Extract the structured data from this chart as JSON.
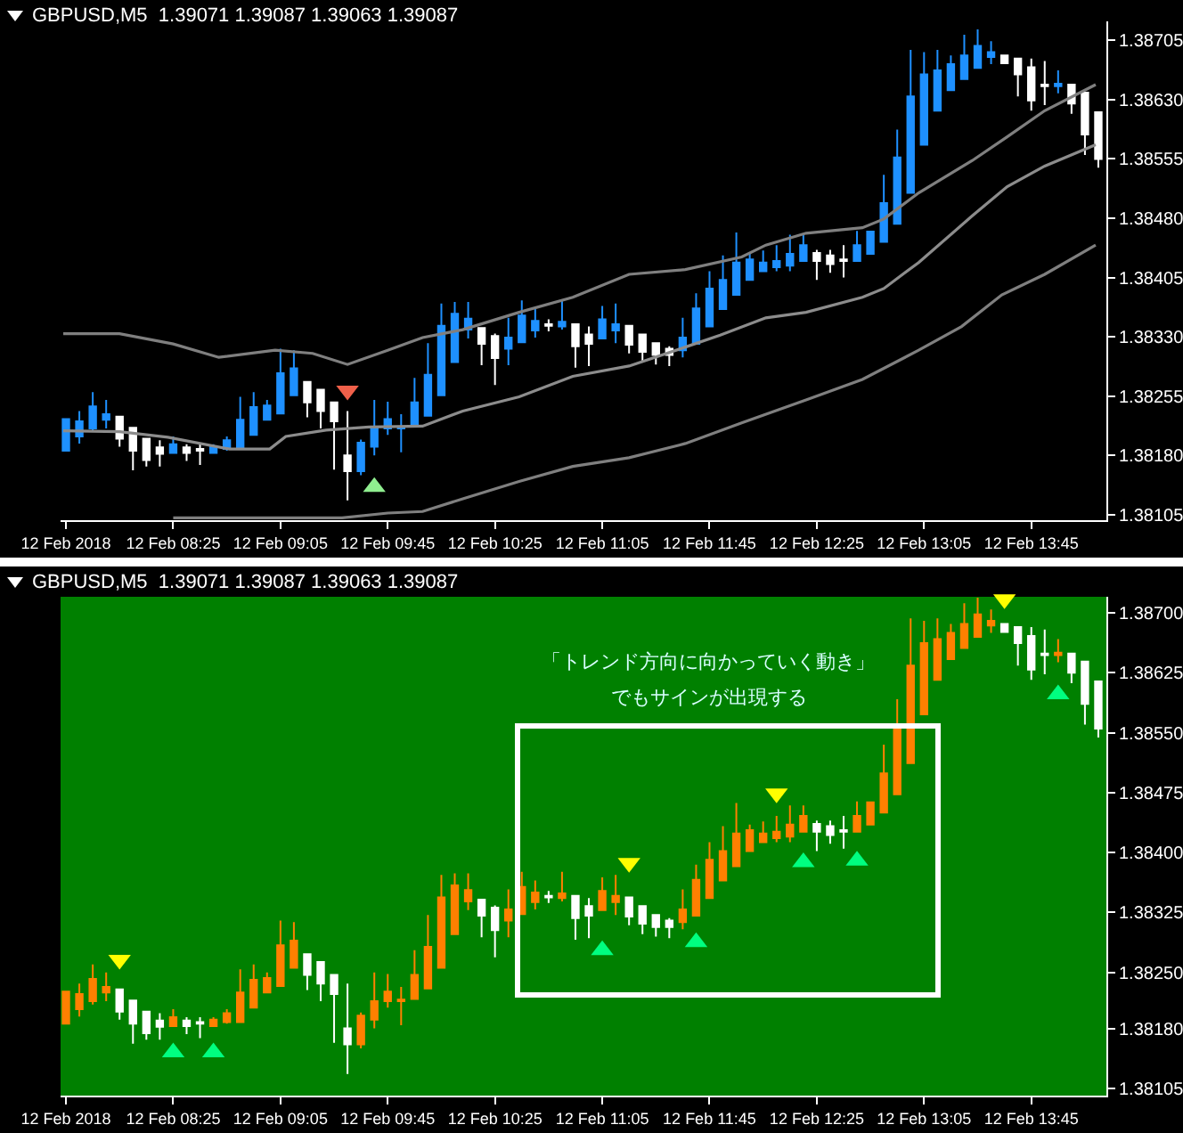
{
  "chart_data": [
    {
      "type": "candlestick",
      "title": "GBPUSD,M5  1.39071 1.39087 1.39063 1.39087",
      "x": [
        "2018-02-12T07:45",
        "2018-02-12T07:50",
        "2018-02-12T07:55",
        "2018-02-12T08:00",
        "2018-02-12T08:05",
        "2018-02-12T08:10",
        "2018-02-12T08:15",
        "2018-02-12T08:20",
        "2018-02-12T08:25",
        "2018-02-12T08:30",
        "2018-02-12T08:35",
        "2018-02-12T08:40",
        "2018-02-12T08:45",
        "2018-02-12T08:50",
        "2018-02-12T08:55",
        "2018-02-12T09:00",
        "2018-02-12T09:05",
        "2018-02-12T09:10",
        "2018-02-12T09:15",
        "2018-02-12T09:20",
        "2018-02-12T09:25",
        "2018-02-12T09:30",
        "2018-02-12T09:35",
        "2018-02-12T09:40",
        "2018-02-12T09:45",
        "2018-02-12T09:50",
        "2018-02-12T09:55",
        "2018-02-12T10:00",
        "2018-02-12T10:05",
        "2018-02-12T10:10",
        "2018-02-12T10:15",
        "2018-02-12T10:20",
        "2018-02-12T10:25",
        "2018-02-12T10:30",
        "2018-02-12T10:35",
        "2018-02-12T10:40",
        "2018-02-12T10:45",
        "2018-02-12T10:50",
        "2018-02-12T10:55",
        "2018-02-12T11:00",
        "2018-02-12T11:05",
        "2018-02-12T11:10",
        "2018-02-12T11:15",
        "2018-02-12T11:20",
        "2018-02-12T11:25",
        "2018-02-12T11:30",
        "2018-02-12T11:35",
        "2018-02-12T11:40",
        "2018-02-12T11:45",
        "2018-02-12T11:50",
        "2018-02-12T11:55",
        "2018-02-12T12:00",
        "2018-02-12T12:05",
        "2018-02-12T12:10",
        "2018-02-12T12:15",
        "2018-02-12T12:20",
        "2018-02-12T12:25",
        "2018-02-12T12:30",
        "2018-02-12T12:35",
        "2018-02-12T12:40",
        "2018-02-12T12:45",
        "2018-02-12T12:50",
        "2018-02-12T12:55",
        "2018-02-12T13:00",
        "2018-02-12T13:05",
        "2018-02-12T13:10",
        "2018-02-12T13:15",
        "2018-02-12T13:20",
        "2018-02-12T13:25",
        "2018-02-12T13:30",
        "2018-02-12T13:35",
        "2018-02-12T13:40",
        "2018-02-12T13:45",
        "2018-02-12T13:50",
        "2018-02-12T13:55",
        "2018-02-12T14:00",
        "2018-02-12T14:05",
        "2018-02-12T14:10"
      ],
      "ohlc": [
        [
          1.38186,
          1.38226,
          1.38186,
          1.38226
        ],
        [
          1.38204,
          1.38236,
          1.38195,
          1.38223
        ],
        [
          1.38214,
          1.3826,
          1.3821,
          1.38242
        ],
        [
          1.38225,
          1.3825,
          1.38214,
          1.38232
        ],
        [
          1.38229,
          1.38229,
          1.38191,
          1.38201
        ],
        [
          1.38215,
          1.38215,
          1.38161,
          1.38186
        ],
        [
          1.38201,
          1.38201,
          1.38166,
          1.38174
        ],
        [
          1.3819,
          1.38199,
          1.38166,
          1.38182
        ],
        [
          1.38183,
          1.38204,
          1.38183,
          1.38194
        ],
        [
          1.3819,
          1.38194,
          1.38173,
          1.38183
        ],
        [
          1.38188,
          1.38194,
          1.38168,
          1.38186
        ],
        [
          1.38183,
          1.38194,
          1.38182,
          1.38191
        ],
        [
          1.38188,
          1.38204,
          1.38186,
          1.38199
        ],
        [
          1.38188,
          1.38254,
          1.38188,
          1.38225
        ],
        [
          1.38206,
          1.3826,
          1.38206,
          1.38241
        ],
        [
          1.38225,
          1.3825,
          1.38225,
          1.38243
        ],
        [
          1.38233,
          1.38315,
          1.38233,
          1.38284
        ],
        [
          1.38256,
          1.38313,
          1.38256,
          1.3829
        ],
        [
          1.38273,
          1.38273,
          1.38228,
          1.38247
        ],
        [
          1.38263,
          1.38263,
          1.38214,
          1.38236
        ],
        [
          1.38247,
          1.38247,
          1.38162,
          1.38223
        ],
        [
          1.3818,
          1.38236,
          1.38123,
          1.3816
        ],
        [
          1.3816,
          1.382,
          1.38155,
          1.38196
        ],
        [
          1.38191,
          1.3825,
          1.3818,
          1.38214
        ],
        [
          1.38214,
          1.38248,
          1.38206,
          1.38226
        ],
        [
          1.38214,
          1.38232,
          1.38184,
          1.38216
        ],
        [
          1.38217,
          1.38278,
          1.38217,
          1.38247
        ],
        [
          1.3823,
          1.38322,
          1.3823,
          1.38282
        ],
        [
          1.38256,
          1.38372,
          1.38256,
          1.38344
        ],
        [
          1.38298,
          1.38374,
          1.38298,
          1.38359
        ],
        [
          1.38339,
          1.38374,
          1.38328,
          1.38353
        ],
        [
          1.38341,
          1.38341,
          1.38294,
          1.38321
        ],
        [
          1.38331,
          1.38334,
          1.38269,
          1.38303
        ],
        [
          1.38315,
          1.38354,
          1.38294,
          1.38329
        ],
        [
          1.38323,
          1.38376,
          1.38323,
          1.38357
        ],
        [
          1.38338,
          1.38365,
          1.38329,
          1.3835
        ],
        [
          1.38346,
          1.38352,
          1.38337,
          1.38344
        ],
        [
          1.38343,
          1.38376,
          1.38339,
          1.38349
        ],
        [
          1.38346,
          1.38346,
          1.38291,
          1.38318
        ],
        [
          1.38333,
          1.38343,
          1.38293,
          1.38321
        ],
        [
          1.38328,
          1.38369,
          1.38328,
          1.38352
        ],
        [
          1.38338,
          1.38372,
          1.38322,
          1.38346
        ],
        [
          1.38344,
          1.38344,
          1.38309,
          1.3832
        ],
        [
          1.38333,
          1.38333,
          1.38298,
          1.38311
        ],
        [
          1.38322,
          1.38322,
          1.38295,
          1.38307
        ],
        [
          1.38315,
          1.38318,
          1.38293,
          1.38307
        ],
        [
          1.38313,
          1.38354,
          1.38304,
          1.38329
        ],
        [
          1.38321,
          1.38385,
          1.38321,
          1.38366
        ],
        [
          1.38343,
          1.38413,
          1.38343,
          1.38391
        ],
        [
          1.38365,
          1.38433,
          1.38365,
          1.38402
        ],
        [
          1.38383,
          1.38462,
          1.38383,
          1.38424
        ],
        [
          1.38402,
          1.38435,
          1.38402,
          1.38428
        ],
        [
          1.38413,
          1.38439,
          1.38413,
          1.38424
        ],
        [
          1.38418,
          1.38446,
          1.38413,
          1.38426
        ],
        [
          1.3842,
          1.38459,
          1.38413,
          1.38435
        ],
        [
          1.38426,
          1.38459,
          1.38426,
          1.38446
        ],
        [
          1.38436,
          1.3844,
          1.38402,
          1.38426
        ],
        [
          1.38433,
          1.3844,
          1.38411,
          1.38422
        ],
        [
          1.38428,
          1.38446,
          1.38405,
          1.38426
        ],
        [
          1.38426,
          1.38464,
          1.38426,
          1.38446
        ],
        [
          1.38435,
          1.38463,
          1.38435,
          1.38463
        ],
        [
          1.3845,
          1.38535,
          1.3845,
          1.38499
        ],
        [
          1.38473,
          1.38592,
          1.38473,
          1.38557
        ],
        [
          1.38512,
          1.38693,
          1.38512,
          1.38634
        ],
        [
          1.38573,
          1.3869,
          1.38573,
          1.38662
        ],
        [
          1.38616,
          1.38693,
          1.38616,
          1.38667
        ],
        [
          1.38642,
          1.38686,
          1.38642,
          1.38675
        ],
        [
          1.38656,
          1.38712,
          1.38656,
          1.38686
        ],
        [
          1.3867,
          1.38719,
          1.3867,
          1.38698
        ],
        [
          1.38684,
          1.38704,
          1.38675,
          1.3869
        ],
        [
          1.38686,
          1.38686,
          1.38676,
          1.38676
        ],
        [
          1.38682,
          1.38682,
          1.38634,
          1.38662
        ],
        [
          1.38671,
          1.38682,
          1.38616,
          1.38629
        ],
        [
          1.38649,
          1.38679,
          1.38623,
          1.38647
        ],
        [
          1.38647,
          1.38667,
          1.38638,
          1.3865
        ],
        [
          1.38649,
          1.38649,
          1.38612,
          1.38625
        ],
        [
          1.38639,
          1.38639,
          1.3856,
          1.38586
        ],
        [
          1.38614,
          1.38614,
          1.38544,
          1.38555
        ]
      ],
      "colors": [
        "#1e90ff",
        "#1e90ff",
        "#1e90ff",
        "#1e90ff",
        "#ffffff",
        "#ffffff",
        "#ffffff",
        "#ffffff",
        "#1e90ff",
        "#ffffff",
        "#ffffff",
        "#1e90ff",
        "#1e90ff",
        "#1e90ff",
        "#1e90ff",
        "#1e90ff",
        "#1e90ff",
        "#1e90ff",
        "#ffffff",
        "#ffffff",
        "#ffffff",
        "#ffffff",
        "#1e90ff",
        "#1e90ff",
        "#1e90ff",
        "#1e90ff",
        "#1e90ff",
        "#1e90ff",
        "#1e90ff",
        "#1e90ff",
        "#1e90ff",
        "#ffffff",
        "#ffffff",
        "#1e90ff",
        "#1e90ff",
        "#1e90ff",
        "#ffffff",
        "#1e90ff",
        "#ffffff",
        "#ffffff",
        "#1e90ff",
        "#1e90ff",
        "#ffffff",
        "#ffffff",
        "#ffffff",
        "#ffffff",
        "#1e90ff",
        "#1e90ff",
        "#1e90ff",
        "#1e90ff",
        "#1e90ff",
        "#1e90ff",
        "#1e90ff",
        "#1e90ff",
        "#1e90ff",
        "#1e90ff",
        "#ffffff",
        "#ffffff",
        "#ffffff",
        "#1e90ff",
        "#1e90ff",
        "#1e90ff",
        "#1e90ff",
        "#1e90ff",
        "#1e90ff",
        "#1e90ff",
        "#1e90ff",
        "#1e90ff",
        "#1e90ff",
        "#1e90ff",
        "#ffffff",
        "#ffffff",
        "#ffffff",
        "#ffffff",
        "#1e90ff",
        "#ffffff",
        "#ffffff",
        "#ffffff"
      ],
      "series": [
        {
          "type": "line",
          "color": "#7f7f7f",
          "x": [
            "2018-02-12T07:44",
            "2018-02-12T08:05",
            "2018-02-12T08:25",
            "2018-02-12T08:42",
            "2018-02-12T09:03",
            "2018-02-12T09:17",
            "2018-02-12T09:30",
            "2018-02-12T09:45",
            "2018-02-12T09:58",
            "2018-02-12T10:13",
            "2018-02-12T10:34",
            "2018-02-12T10:54",
            "2018-02-12T11:15",
            "2018-02-12T11:36",
            "2018-02-12T11:57",
            "2018-02-12T12:06",
            "2018-02-12T12:21",
            "2018-02-12T12:42",
            "2018-02-12T12:50",
            "2018-02-12T13:03",
            "2018-02-12T13:23",
            "2018-02-12T13:36",
            "2018-02-12T13:50",
            "2018-02-12T14:09"
          ],
          "values": [
            1.38334,
            1.38334,
            1.38321,
            1.38304,
            1.38313,
            1.38309,
            1.38295,
            1.38313,
            1.38329,
            1.38339,
            1.38361,
            1.3838,
            1.38409,
            1.38415,
            1.38431,
            1.38446,
            1.38461,
            1.38468,
            1.38479,
            1.38512,
            1.38553,
            1.38583,
            1.38616,
            1.38649
          ]
        },
        {
          "type": "line",
          "color": "#8c8c8c",
          "x": [
            "2018-02-12T07:44",
            "2018-02-12T08:05",
            "2018-02-12T08:23",
            "2018-02-12T08:46",
            "2018-02-12T09:01",
            "2018-02-12T09:07",
            "2018-02-12T09:22",
            "2018-02-12T09:38",
            "2018-02-12T09:58",
            "2018-02-12T10:13",
            "2018-02-12T10:34",
            "2018-02-12T10:54",
            "2018-02-12T11:15",
            "2018-02-12T11:36",
            "2018-02-12T11:49",
            "2018-02-12T12:06",
            "2018-02-12T12:21",
            "2018-02-12T12:42",
            "2018-02-12T12:50",
            "2018-02-12T13:03",
            "2018-02-12T13:23",
            "2018-02-12T13:36",
            "2018-02-12T13:50",
            "2018-02-12T14:09"
          ],
          "values": [
            1.38211,
            1.3821,
            1.38203,
            1.38188,
            1.38188,
            1.38204,
            1.38212,
            1.38216,
            1.38217,
            1.38236,
            1.38254,
            1.3828,
            1.38293,
            1.38317,
            1.38332,
            1.38354,
            1.38361,
            1.3838,
            1.38391,
            1.38424,
            1.38483,
            1.3852,
            1.38546,
            1.38573
          ]
        },
        {
          "type": "line",
          "color": "#7f7f7f",
          "x": [
            "2018-02-12T08:25",
            "2018-02-12T09:28",
            "2018-02-12T09:45",
            "2018-02-12T09:58",
            "2018-02-12T10:13",
            "2018-02-12T10:34",
            "2018-02-12T10:54",
            "2018-02-12T11:15",
            "2018-02-12T11:36",
            "2018-02-12T11:57",
            "2018-02-12T12:21",
            "2018-02-12T12:42",
            "2018-02-12T13:03",
            "2018-02-12T13:19",
            "2018-02-12T13:34",
            "2018-02-12T13:50",
            "2018-02-12T14:09"
          ],
          "values": [
            1.38101,
            1.38101,
            1.38107,
            1.38109,
            1.38125,
            1.38147,
            1.38166,
            1.38177,
            1.38195,
            1.38221,
            1.3825,
            1.38276,
            1.38313,
            1.38343,
            1.38383,
            1.38409,
            1.38446
          ]
        },
        {
          "type": "scatter",
          "marker": "triangle-down",
          "color": "#f0604a",
          "x": [
            "2018-02-12T09:30"
          ],
          "values": [
            1.38262
          ]
        },
        {
          "type": "scatter",
          "marker": "triangle",
          "color": "#90ee90",
          "x": [
            "2018-02-12T09:40"
          ],
          "values": [
            1.3814
          ]
        }
      ],
      "xlim": [
        "2018-02-12T07:43",
        "2018-02-12T14:13"
      ],
      "xticks": [
        {
          "value": "2018-02-12T07:45",
          "label": "12 Feb 2018"
        },
        {
          "value": "2018-02-12T08:25",
          "label": "12 Feb 08:25"
        },
        {
          "value": "2018-02-12T09:05",
          "label": "12 Feb 09:05"
        },
        {
          "value": "2018-02-12T09:45",
          "label": "12 Feb 09:45"
        },
        {
          "value": "2018-02-12T10:25",
          "label": "12 Feb 10:25"
        },
        {
          "value": "2018-02-12T11:05",
          "label": "12 Feb 11:05"
        },
        {
          "value": "2018-02-12T11:45",
          "label": "12 Feb 11:45"
        },
        {
          "value": "2018-02-12T12:25",
          "label": "12 Feb 12:25"
        },
        {
          "value": "2018-02-12T13:05",
          "label": "12 Feb 13:05"
        },
        {
          "value": "2018-02-12T13:45",
          "label": "12 Feb 13:45"
        }
      ],
      "ylim": [
        1.38098,
        1.38729
      ],
      "yticks": [
        {
          "value": 1.38705,
          "label": "1.38705"
        },
        {
          "value": 1.3863,
          "label": "1.38630"
        },
        {
          "value": 1.38555,
          "label": "1.38555"
        },
        {
          "value": 1.3848,
          "label": "1.38480"
        },
        {
          "value": 1.38405,
          "label": "1.38405"
        },
        {
          "value": 1.3833,
          "label": "1.38330"
        },
        {
          "value": 1.38255,
          "label": "1.38255"
        },
        {
          "value": 1.3818,
          "label": "1.38180"
        },
        {
          "value": 1.38105,
          "label": "1.38105"
        }
      ]
    },
    {
      "type": "candlestick",
      "title": "GBPUSD,M5  1.39071 1.39087 1.39063 1.39087",
      "x": [
        "2018-02-12T07:45",
        "2018-02-12T07:50",
        "2018-02-12T07:55",
        "2018-02-12T08:00",
        "2018-02-12T08:05",
        "2018-02-12T08:10",
        "2018-02-12T08:15",
        "2018-02-12T08:20",
        "2018-02-12T08:25",
        "2018-02-12T08:30",
        "2018-02-12T08:35",
        "2018-02-12T08:40",
        "2018-02-12T08:45",
        "2018-02-12T08:50",
        "2018-02-12T08:55",
        "2018-02-12T09:00",
        "2018-02-12T09:05",
        "2018-02-12T09:10",
        "2018-02-12T09:15",
        "2018-02-12T09:20",
        "2018-02-12T09:25",
        "2018-02-12T09:30",
        "2018-02-12T09:35",
        "2018-02-12T09:40",
        "2018-02-12T09:45",
        "2018-02-12T09:50",
        "2018-02-12T09:55",
        "2018-02-12T10:00",
        "2018-02-12T10:05",
        "2018-02-12T10:10",
        "2018-02-12T10:15",
        "2018-02-12T10:20",
        "2018-02-12T10:25",
        "2018-02-12T10:30",
        "2018-02-12T10:35",
        "2018-02-12T10:40",
        "2018-02-12T10:45",
        "2018-02-12T10:50",
        "2018-02-12T10:55",
        "2018-02-12T11:00",
        "2018-02-12T11:05",
        "2018-02-12T11:10",
        "2018-02-12T11:15",
        "2018-02-12T11:20",
        "2018-02-12T11:25",
        "2018-02-12T11:30",
        "2018-02-12T11:35",
        "2018-02-12T11:40",
        "2018-02-12T11:45",
        "2018-02-12T11:50",
        "2018-02-12T11:55",
        "2018-02-12T12:00",
        "2018-02-12T12:05",
        "2018-02-12T12:10",
        "2018-02-12T12:15",
        "2018-02-12T12:20",
        "2018-02-12T12:25",
        "2018-02-12T12:30",
        "2018-02-12T12:35",
        "2018-02-12T12:40",
        "2018-02-12T12:45",
        "2018-02-12T12:50",
        "2018-02-12T12:55",
        "2018-02-12T13:00",
        "2018-02-12T13:05",
        "2018-02-12T13:10",
        "2018-02-12T13:15",
        "2018-02-12T13:20",
        "2018-02-12T13:25",
        "2018-02-12T13:30",
        "2018-02-12T13:35",
        "2018-02-12T13:40",
        "2018-02-12T13:45",
        "2018-02-12T13:50",
        "2018-02-12T13:55",
        "2018-02-12T14:00",
        "2018-02-12T14:05",
        "2018-02-12T14:10"
      ],
      "ohlc": [
        [
          1.38186,
          1.38226,
          1.38186,
          1.38226
        ],
        [
          1.38204,
          1.38236,
          1.38195,
          1.38223
        ],
        [
          1.38214,
          1.3826,
          1.3821,
          1.38242
        ],
        [
          1.38225,
          1.3825,
          1.38214,
          1.38232
        ],
        [
          1.38229,
          1.38229,
          1.38191,
          1.38201
        ],
        [
          1.38215,
          1.38215,
          1.38161,
          1.38186
        ],
        [
          1.38201,
          1.38201,
          1.38166,
          1.38174
        ],
        [
          1.3819,
          1.38199,
          1.38166,
          1.38182
        ],
        [
          1.38183,
          1.38204,
          1.38183,
          1.38194
        ],
        [
          1.3819,
          1.38194,
          1.38173,
          1.38183
        ],
        [
          1.38188,
          1.38194,
          1.38168,
          1.38186
        ],
        [
          1.38183,
          1.38194,
          1.38182,
          1.38191
        ],
        [
          1.38188,
          1.38204,
          1.38186,
          1.38199
        ],
        [
          1.38188,
          1.38254,
          1.38188,
          1.38225
        ],
        [
          1.38206,
          1.3826,
          1.38206,
          1.38241
        ],
        [
          1.38225,
          1.3825,
          1.38225,
          1.38243
        ],
        [
          1.38233,
          1.38315,
          1.38233,
          1.38284
        ],
        [
          1.38256,
          1.38313,
          1.38256,
          1.3829
        ],
        [
          1.38273,
          1.38273,
          1.38228,
          1.38247
        ],
        [
          1.38263,
          1.38263,
          1.38214,
          1.38236
        ],
        [
          1.38247,
          1.38247,
          1.38162,
          1.38223
        ],
        [
          1.3818,
          1.38236,
          1.38123,
          1.3816
        ],
        [
          1.3816,
          1.382,
          1.38155,
          1.38196
        ],
        [
          1.38191,
          1.3825,
          1.3818,
          1.38214
        ],
        [
          1.38214,
          1.38248,
          1.38206,
          1.38226
        ],
        [
          1.38214,
          1.38232,
          1.38184,
          1.38216
        ],
        [
          1.38217,
          1.38278,
          1.38217,
          1.38247
        ],
        [
          1.3823,
          1.38322,
          1.3823,
          1.38282
        ],
        [
          1.38256,
          1.38372,
          1.38256,
          1.38344
        ],
        [
          1.38298,
          1.38374,
          1.38298,
          1.38359
        ],
        [
          1.38339,
          1.38374,
          1.38328,
          1.38353
        ],
        [
          1.38341,
          1.38341,
          1.38294,
          1.38321
        ],
        [
          1.38331,
          1.38334,
          1.38269,
          1.38303
        ],
        [
          1.38315,
          1.38354,
          1.38294,
          1.38329
        ],
        [
          1.38323,
          1.38376,
          1.38323,
          1.38357
        ],
        [
          1.38338,
          1.38365,
          1.38329,
          1.3835
        ],
        [
          1.38346,
          1.38352,
          1.38337,
          1.38344
        ],
        [
          1.38343,
          1.38376,
          1.38339,
          1.38349
        ],
        [
          1.38346,
          1.38346,
          1.38291,
          1.38318
        ],
        [
          1.38333,
          1.38343,
          1.38293,
          1.38321
        ],
        [
          1.38328,
          1.38369,
          1.38328,
          1.38352
        ],
        [
          1.38338,
          1.38372,
          1.38322,
          1.38346
        ],
        [
          1.38344,
          1.38344,
          1.38309,
          1.3832
        ],
        [
          1.38333,
          1.38333,
          1.38298,
          1.38311
        ],
        [
          1.38322,
          1.38322,
          1.38295,
          1.38307
        ],
        [
          1.38315,
          1.38318,
          1.38293,
          1.38307
        ],
        [
          1.38313,
          1.38354,
          1.38304,
          1.38329
        ],
        [
          1.38321,
          1.38385,
          1.38321,
          1.38366
        ],
        [
          1.38343,
          1.38413,
          1.38343,
          1.38391
        ],
        [
          1.38365,
          1.38433,
          1.38365,
          1.38402
        ],
        [
          1.38383,
          1.38462,
          1.38383,
          1.38424
        ],
        [
          1.38402,
          1.38435,
          1.38402,
          1.38428
        ],
        [
          1.38413,
          1.38439,
          1.38413,
          1.38424
        ],
        [
          1.38418,
          1.38446,
          1.38413,
          1.38426
        ],
        [
          1.3842,
          1.38459,
          1.38413,
          1.38435
        ],
        [
          1.38426,
          1.38459,
          1.38426,
          1.38446
        ],
        [
          1.38436,
          1.3844,
          1.38402,
          1.38426
        ],
        [
          1.38433,
          1.3844,
          1.38411,
          1.38422
        ],
        [
          1.38428,
          1.38446,
          1.38405,
          1.38426
        ],
        [
          1.38426,
          1.38464,
          1.38426,
          1.38446
        ],
        [
          1.38435,
          1.38463,
          1.38435,
          1.38463
        ],
        [
          1.3845,
          1.38535,
          1.3845,
          1.38499
        ],
        [
          1.38473,
          1.38592,
          1.38473,
          1.38557
        ],
        [
          1.38512,
          1.38693,
          1.38512,
          1.38634
        ],
        [
          1.38573,
          1.3869,
          1.38573,
          1.38662
        ],
        [
          1.38616,
          1.38693,
          1.38616,
          1.38667
        ],
        [
          1.38642,
          1.38686,
          1.38642,
          1.38675
        ],
        [
          1.38656,
          1.38712,
          1.38656,
          1.38686
        ],
        [
          1.3867,
          1.38719,
          1.3867,
          1.38698
        ],
        [
          1.38684,
          1.38704,
          1.38675,
          1.3869
        ],
        [
          1.38686,
          1.38686,
          1.38676,
          1.38676
        ],
        [
          1.38682,
          1.38682,
          1.38634,
          1.38662
        ],
        [
          1.38671,
          1.38682,
          1.38616,
          1.38629
        ],
        [
          1.38649,
          1.38679,
          1.38623,
          1.38647
        ],
        [
          1.38647,
          1.38667,
          1.38638,
          1.3865
        ],
        [
          1.38649,
          1.38649,
          1.38612,
          1.38625
        ],
        [
          1.38639,
          1.38639,
          1.3856,
          1.38586
        ],
        [
          1.38614,
          1.38614,
          1.38544,
          1.38555
        ]
      ],
      "colors": [
        "#ff8000",
        "#ff8000",
        "#ff8000",
        "#ff8000",
        "#ffffff",
        "#ffffff",
        "#ffffff",
        "#ffffff",
        "#ff8000",
        "#ffffff",
        "#ffffff",
        "#ff8000",
        "#ff8000",
        "#ff8000",
        "#ff8000",
        "#ff8000",
        "#ff8000",
        "#ff8000",
        "#ffffff",
        "#ffffff",
        "#ffffff",
        "#ffffff",
        "#ff8000",
        "#ff8000",
        "#ff8000",
        "#ff8000",
        "#ff8000",
        "#ff8000",
        "#ff8000",
        "#ff8000",
        "#ff8000",
        "#ffffff",
        "#ffffff",
        "#ff8000",
        "#ff8000",
        "#ff8000",
        "#ffffff",
        "#ff8000",
        "#ffffff",
        "#ffffff",
        "#ff8000",
        "#ff8000",
        "#ffffff",
        "#ffffff",
        "#ffffff",
        "#ffffff",
        "#ff8000",
        "#ff8000",
        "#ff8000",
        "#ff8000",
        "#ff8000",
        "#ff8000",
        "#ff8000",
        "#ff8000",
        "#ff8000",
        "#ff8000",
        "#ffffff",
        "#ffffff",
        "#ffffff",
        "#ff8000",
        "#ff8000",
        "#ff8000",
        "#ff8000",
        "#ff8000",
        "#ff8000",
        "#ff8000",
        "#ff8000",
        "#ff8000",
        "#ff8000",
        "#ff8000",
        "#ffffff",
        "#ffffff",
        "#ffffff",
        "#ffffff",
        "#ff8000",
        "#ffffff",
        "#ffffff",
        "#ffffff"
      ],
      "series": [
        {
          "type": "scatter",
          "marker": "triangle-down",
          "color": "#ffff00",
          "x": [
            "2018-02-12T08:05",
            "2018-02-12T11:15",
            "2018-02-12T12:10",
            "2018-02-12T13:35"
          ],
          "values": [
            1.38266,
            1.38387,
            1.38474,
            1.38717
          ]
        },
        {
          "type": "scatter",
          "marker": "triangle",
          "color": "#00ff80",
          "x": [
            "2018-02-12T08:25",
            "2018-02-12T08:40",
            "2018-02-12T11:05",
            "2018-02-12T11:40",
            "2018-02-12T12:20",
            "2018-02-12T12:40",
            "2018-02-12T13:55"
          ],
          "values": [
            1.3815,
            1.3815,
            1.38278,
            1.38288,
            1.38388,
            1.3839,
            1.38598
          ]
        }
      ],
      "annotations": [
        "「トレンド方向に向かっていく動き」",
        "でもサインが出現する"
      ],
      "xlim": [
        "2018-02-12T07:43",
        "2018-02-12T14:13"
      ],
      "xticks": [
        {
          "value": "2018-02-12T07:45",
          "label": "12 Feb 2018"
        },
        {
          "value": "2018-02-12T08:25",
          "label": "12 Feb 08:25"
        },
        {
          "value": "2018-02-12T09:05",
          "label": "12 Feb 09:05"
        },
        {
          "value": "2018-02-12T09:45",
          "label": "12 Feb 09:45"
        },
        {
          "value": "2018-02-12T10:25",
          "label": "12 Feb 10:25"
        },
        {
          "value": "2018-02-12T11:05",
          "label": "12 Feb 11:05"
        },
        {
          "value": "2018-02-12T11:45",
          "label": "12 Feb 11:45"
        },
        {
          "value": "2018-02-12T12:25",
          "label": "12 Feb 12:25"
        },
        {
          "value": "2018-02-12T13:05",
          "label": "12 Feb 13:05"
        },
        {
          "value": "2018-02-12T13:45",
          "label": "12 Feb 13:45"
        }
      ],
      "ylim": [
        1.38096,
        1.3872
      ],
      "yticks": [
        {
          "value": 1.387,
          "label": "1.38700"
        },
        {
          "value": 1.38625,
          "label": "1.38625"
        },
        {
          "value": 1.3855,
          "label": "1.38550"
        },
        {
          "value": 1.38475,
          "label": "1.38475"
        },
        {
          "value": 1.384,
          "label": "1.38400"
        },
        {
          "value": 1.38325,
          "label": "1.38325"
        },
        {
          "value": 1.3825,
          "label": "1.38250"
        },
        {
          "value": 1.3818,
          "label": "1.38180"
        },
        {
          "value": 1.38105,
          "label": "1.38105"
        }
      ]
    }
  ]
}
